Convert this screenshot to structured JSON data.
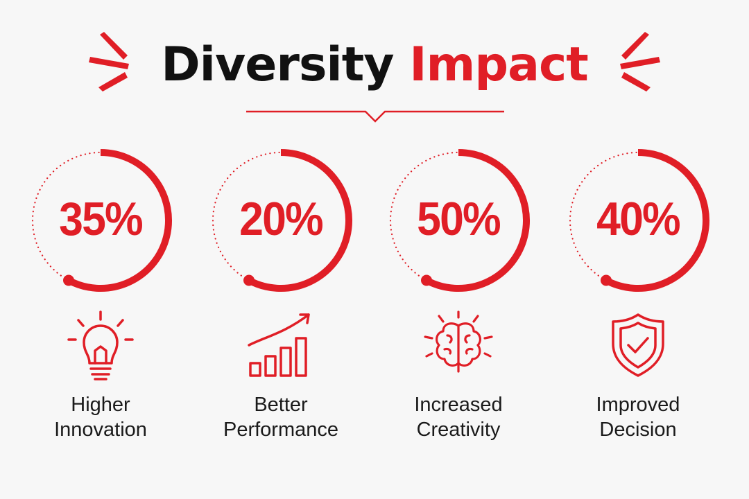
{
  "title": {
    "dark": "Diversity",
    "accent": "Impact"
  },
  "colors": {
    "accent": "#e01e26",
    "text": "#1a1a1a",
    "background": "#f7f7f7"
  },
  "stats": [
    {
      "value": 35,
      "value_label": "35%",
      "icon": "lightbulb-icon",
      "label_line1": "Higher",
      "label_line2": "Innovation"
    },
    {
      "value": 20,
      "value_label": "20%",
      "icon": "bar-chart-growth-icon",
      "label_line1": "Better",
      "label_line2": "Performance"
    },
    {
      "value": 50,
      "value_label": "50%",
      "icon": "brain-icon",
      "label_line1": "Increased",
      "label_line2": "Creativity"
    },
    {
      "value": 40,
      "value_label": "40%",
      "icon": "shield-check-icon",
      "label_line1": "Improved",
      "label_line2": "Decision"
    }
  ]
}
